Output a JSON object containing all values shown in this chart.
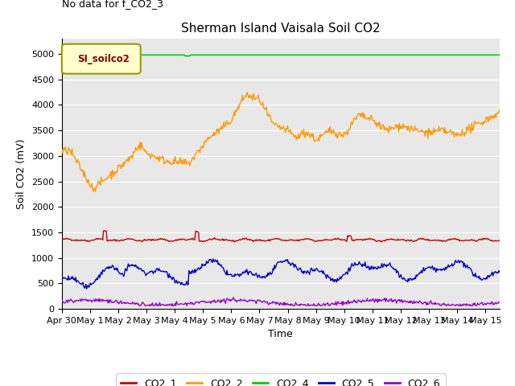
{
  "title": "Sherman Island Vaisala Soil CO2",
  "no_data_text": "No data for f_CO2_3",
  "legend_box_text": "SI_soilco2",
  "xlabel": "Time",
  "ylabel": "Soil CO2 (mV)",
  "ylim": [
    0,
    5300
  ],
  "yticks": [
    0,
    500,
    1000,
    1500,
    2000,
    2500,
    3000,
    3500,
    4000,
    4500,
    5000
  ],
  "xlim_days": [
    0,
    15.5
  ],
  "x_tick_labels": [
    "Apr 30",
    "May 1",
    "May 2",
    "May 3",
    "May 4",
    "May 5",
    "May 6",
    "May 7",
    "May 8",
    "May 9",
    "May 10",
    "May 11",
    "May 12",
    "May 13",
    "May 14",
    "May 15"
  ],
  "colors": {
    "CO2_1": "#cc0000",
    "CO2_2": "#ff9900",
    "CO2_4": "#00cc00",
    "CO2_5": "#0000cc",
    "CO2_6": "#9900cc"
  },
  "plot_bg_color": "#e8e8e8",
  "title_fontsize": 11,
  "axis_label_fontsize": 9,
  "tick_fontsize": 8,
  "legend_fontsize": 9
}
